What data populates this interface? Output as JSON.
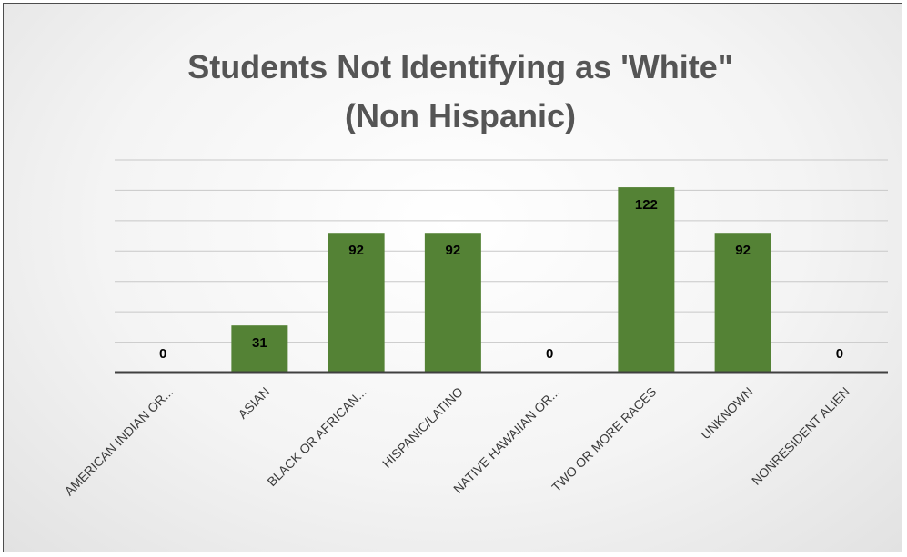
{
  "chart_data": {
    "type": "bar",
    "title_lines": [
      "Students Not Identifying as 'White\"",
      "(Non Hispanic)"
    ],
    "categories": [
      "AMERICAN INDIAN OR...",
      "ASIAN",
      "BLACK OR AFRICAN...",
      "HISPANIC/LATINO",
      "NATIVE HAWAIIAN OR...",
      "TWO OR MORE RACES",
      "UNKNOWN",
      "NONRESIDENT ALIEN"
    ],
    "values": [
      0,
      31,
      92,
      92,
      0,
      122,
      92,
      0
    ],
    "ylim": [
      0,
      140
    ],
    "grid": true,
    "bar_color": "#548235",
    "gridline_color": "#c8c8c8",
    "axis_color": "#404040"
  }
}
